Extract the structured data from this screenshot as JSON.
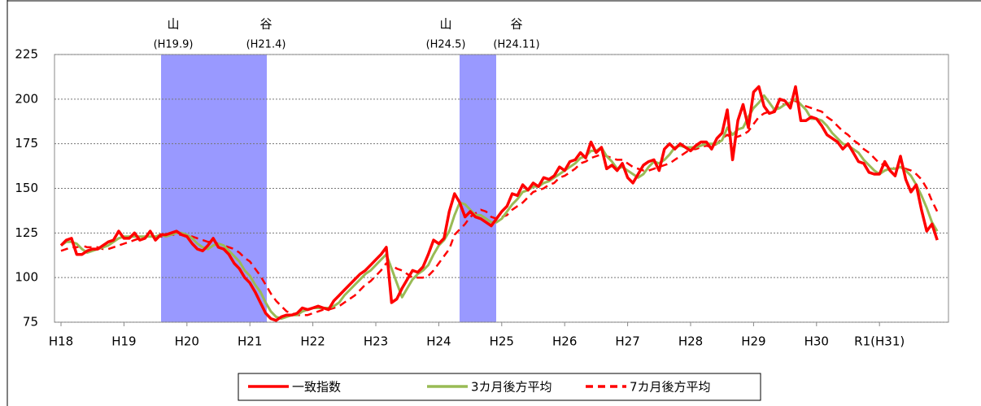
{
  "chart_data": {
    "type": "line",
    "categories": [
      "H18",
      null,
      null,
      null,
      null,
      null,
      null,
      null,
      null,
      null,
      null,
      null,
      "H19",
      null,
      null,
      null,
      null,
      null,
      null,
      null,
      null,
      null,
      null,
      null,
      "H20",
      null,
      null,
      null,
      null,
      null,
      null,
      null,
      null,
      null,
      null,
      null,
      "H21",
      null,
      null,
      null,
      null,
      null,
      null,
      null,
      null,
      null,
      null,
      null,
      "H22",
      null,
      null,
      null,
      null,
      null,
      null,
      null,
      null,
      null,
      null,
      null,
      "H23",
      null,
      null,
      null,
      null,
      null,
      null,
      null,
      null,
      null,
      null,
      null,
      "H24",
      null,
      null,
      null,
      null,
      null,
      null,
      null,
      null,
      null,
      null,
      null,
      "H25",
      null,
      null,
      null,
      null,
      null,
      null,
      null,
      null,
      null,
      null,
      null,
      "H26",
      null,
      null,
      null,
      null,
      null,
      null,
      null,
      null,
      null,
      null,
      null,
      "H27",
      null,
      null,
      null,
      null,
      null,
      null,
      null,
      null,
      null,
      null,
      null,
      "H28",
      null,
      null,
      null,
      null,
      null,
      null,
      null,
      null,
      null,
      null,
      null,
      "H29",
      null,
      null,
      null,
      null,
      null,
      null,
      null,
      null,
      null,
      null,
      null,
      "H30",
      null,
      null,
      null,
      null,
      null,
      null,
      null,
      null,
      null,
      null,
      null,
      "R1(H31)",
      null,
      null,
      null,
      null,
      null,
      null,
      null,
      null,
      null,
      null,
      null
    ],
    "series": [
      {
        "name": "一致指数",
        "color": "#ff0000",
        "dashed": false,
        "values": [
          118,
          121,
          122,
          113,
          113,
          115,
          116,
          116,
          118,
          120,
          121,
          126,
          122,
          122,
          125,
          121,
          122,
          126,
          121,
          124,
          124,
          125,
          126,
          124,
          123,
          119,
          116,
          115,
          118,
          122,
          117,
          116,
          113,
          108,
          105,
          100,
          97,
          92,
          86,
          80,
          77,
          76,
          78,
          79,
          79,
          80,
          83,
          82,
          83,
          84,
          83,
          82,
          87,
          90,
          93,
          96,
          99,
          102,
          104,
          107,
          110,
          113,
          117,
          86,
          88,
          94,
          99,
          104,
          103,
          106,
          113,
          121,
          119,
          122,
          137,
          147,
          142,
          134,
          137,
          134,
          133,
          131,
          129,
          133,
          137,
          140,
          147,
          146,
          152,
          149,
          153,
          151,
          156,
          155,
          157,
          162,
          160,
          165,
          166,
          170,
          167,
          176,
          170,
          173,
          161,
          163,
          160,
          164,
          156,
          153,
          158,
          163,
          165,
          166,
          160,
          172,
          175,
          172,
          175,
          173,
          171,
          174,
          176,
          176,
          172,
          178,
          181,
          194,
          166,
          188,
          197,
          184,
          204,
          207,
          196,
          192,
          193,
          200,
          199,
          195,
          207,
          188,
          188,
          190,
          189,
          185,
          180,
          178,
          176,
          172,
          175,
          170,
          165,
          164,
          159,
          158,
          158,
          165,
          160,
          157,
          168,
          155,
          148,
          152,
          138,
          126,
          130,
          121
        ]
      },
      {
        "name": "3カ月後方平均",
        "color": "#99bb55",
        "dashed": false,
        "values": [
          118,
          120,
          120,
          119,
          116,
          114,
          115,
          116,
          117,
          118,
          120,
          122,
          123,
          123,
          123,
          123,
          123,
          123,
          123,
          124,
          123,
          124,
          125,
          125,
          124,
          122,
          119,
          117,
          116,
          118,
          119,
          118,
          115,
          112,
          109,
          104,
          101,
          96,
          92,
          86,
          81,
          78,
          77,
          78,
          79,
          79,
          81,
          82,
          83,
          83,
          83,
          83,
          84,
          86,
          90,
          93,
          96,
          99,
          102,
          104,
          107,
          110,
          113,
          105,
          97,
          89,
          94,
          99,
          102,
          104,
          107,
          113,
          118,
          121,
          126,
          135,
          142,
          141,
          138,
          135,
          135,
          133,
          131,
          131,
          133,
          137,
          141,
          144,
          148,
          149,
          151,
          151,
          153,
          154,
          156,
          158,
          160,
          162,
          164,
          167,
          168,
          171,
          171,
          173,
          168,
          165,
          161,
          162,
          160,
          158,
          156,
          158,
          162,
          165,
          164,
          166,
          169,
          173,
          174,
          173,
          173,
          173,
          174,
          175,
          175,
          175,
          177,
          184,
          180,
          183,
          184,
          190,
          195,
          198,
          202,
          198,
          194,
          195,
          197,
          198,
          200,
          197,
          194,
          189,
          189,
          188,
          185,
          181,
          178,
          175,
          174,
          172,
          170,
          166,
          163,
          160,
          158,
          160,
          161,
          161,
          162,
          160,
          157,
          152,
          146,
          139,
          131,
          126
        ]
      },
      {
        "name": "7カ月後方平均",
        "color": "#ff0000",
        "dashed": true,
        "values": [
          115,
          116,
          117,
          117,
          118,
          117,
          117,
          117,
          116,
          116,
          117,
          118,
          119,
          120,
          121,
          122,
          123,
          123,
          123,
          123,
          123,
          124,
          124,
          124,
          124,
          123,
          122,
          121,
          120,
          120,
          119,
          118,
          117,
          116,
          114,
          111,
          109,
          105,
          101,
          96,
          91,
          87,
          84,
          81,
          80,
          79,
          79,
          79,
          80,
          81,
          82,
          82,
          83,
          84,
          86,
          88,
          90,
          93,
          96,
          98,
          101,
          104,
          108,
          107,
          105,
          104,
          102,
          100,
          100,
          100,
          101,
          104,
          108,
          112,
          116,
          124,
          127,
          130,
          134,
          136,
          138,
          137,
          134,
          133,
          134,
          135,
          138,
          140,
          142,
          145,
          148,
          149,
          150,
          152,
          153,
          156,
          157,
          159,
          161,
          164,
          165,
          167,
          168,
          169,
          168,
          167,
          166,
          166,
          164,
          162,
          161,
          160,
          160,
          161,
          162,
          163,
          164,
          166,
          168,
          170,
          172,
          172,
          173,
          174,
          173,
          175,
          178,
          180,
          178,
          179,
          180,
          182,
          186,
          190,
          192,
          193,
          194,
          197,
          197,
          198,
          199,
          197,
          196,
          195,
          194,
          193,
          190,
          188,
          185,
          182,
          180,
          177,
          175,
          172,
          170,
          167,
          164,
          163,
          162,
          161,
          162,
          161,
          160,
          158,
          155,
          150,
          143,
          137
        ]
      }
    ],
    "ylim": [
      75,
      225
    ],
    "yticks": [
      75,
      100,
      125,
      150,
      175,
      200,
      225
    ],
    "grid": true,
    "annotations": [
      {
        "text": "山",
        "date": "(H19.9)"
      },
      {
        "text": "谷",
        "date": "(H21.4)"
      },
      {
        "text": "山",
        "date": "(H24.5)"
      },
      {
        "text": "谷",
        "date": "(H24.11)"
      }
    ]
  }
}
